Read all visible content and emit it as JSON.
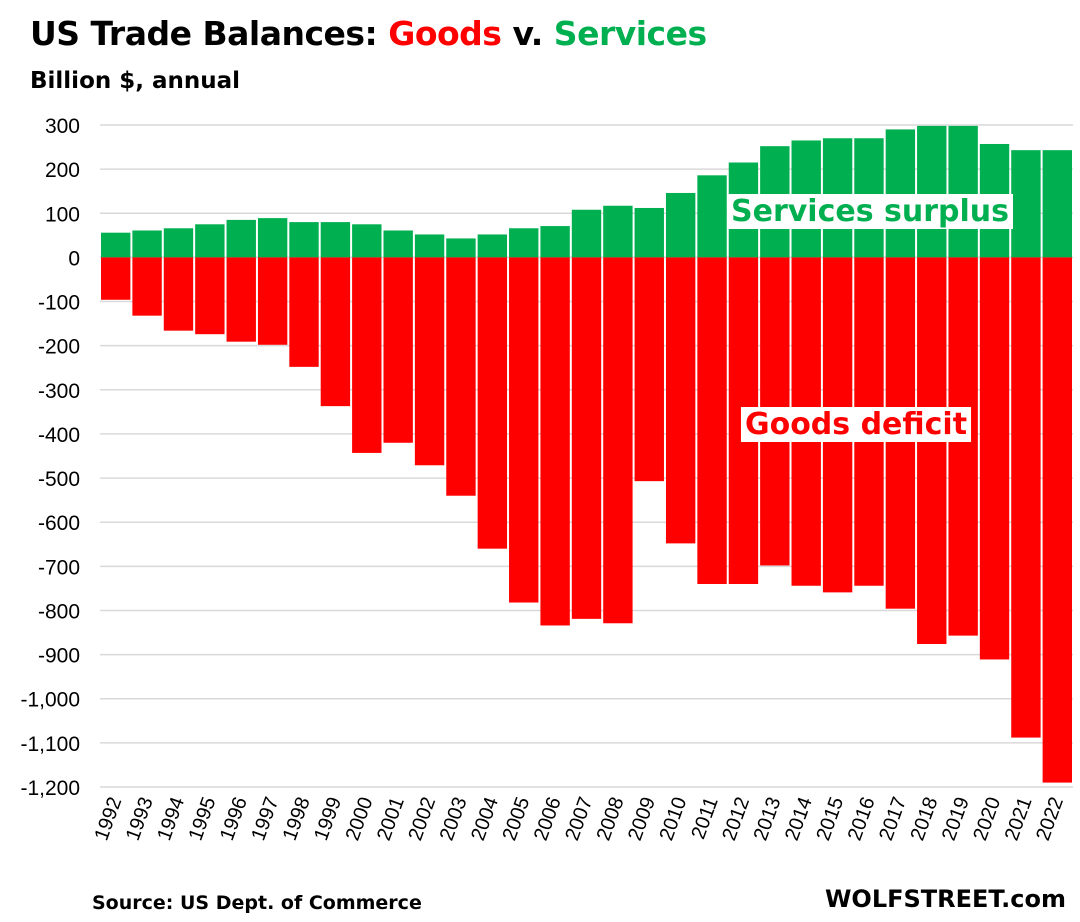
{
  "chart_data": {
    "type": "bar",
    "title": {
      "prefix": "US Trade Balances: ",
      "goods": "Goods",
      "middle": " v. ",
      "services": "Services"
    },
    "subtitle": "Billion $, annual",
    "source": "Source: US Dept. of Commerce",
    "brand": "WOLFSTREET.com",
    "ylim": [
      -1200,
      300
    ],
    "yticks": [
      300,
      200,
      100,
      0,
      -100,
      -200,
      -300,
      -400,
      -500,
      -600,
      -700,
      -800,
      -900,
      -1000,
      -1100,
      -1200
    ],
    "ytick_labels": [
      "300",
      "200",
      "100",
      "0",
      "-100",
      "-200",
      "-300",
      "-400",
      "-500",
      "-600",
      "-700",
      "-800",
      "-900",
      "-1,000",
      "-1,100",
      "-1,200"
    ],
    "grid": true,
    "categories": [
      "1992",
      "1993",
      "1994",
      "1995",
      "1996",
      "1997",
      "1998",
      "1999",
      "2000",
      "2001",
      "2002",
      "2003",
      "2004",
      "2005",
      "2006",
      "2007",
      "2008",
      "2009",
      "2010",
      "2011",
      "2012",
      "2013",
      "2014",
      "2015",
      "2016",
      "2017",
      "2018",
      "2019",
      "2020",
      "2021",
      "2022"
    ],
    "series": [
      {
        "name": "Services surplus",
        "color": "#00b050",
        "values": [
          56,
          61,
          66,
          75,
          85,
          89,
          80,
          80,
          75,
          61,
          52,
          43,
          52,
          66,
          71,
          108,
          117,
          112,
          146,
          186,
          215,
          252,
          265,
          270,
          270,
          290,
          298,
          298,
          257,
          243,
          243
        ]
      },
      {
        "name": "Goods deficit",
        "color": "#ff0000",
        "values": [
          -96,
          -132,
          -166,
          -174,
          -191,
          -198,
          -248,
          -337,
          -443,
          -420,
          -471,
          -540,
          -660,
          -782,
          -834,
          -819,
          -829,
          -507,
          -648,
          -740,
          -740,
          -698,
          -744,
          -759,
          -744,
          -796,
          -876,
          -857,
          -911,
          -1088,
          -1190
        ]
      }
    ],
    "annotations": [
      "Services surplus",
      "Goods deficit"
    ],
    "colors": {
      "goods_title": "#ff0000",
      "services_title": "#00b050",
      "goods_label": "#ff0000",
      "services_label": "#00b050"
    }
  }
}
